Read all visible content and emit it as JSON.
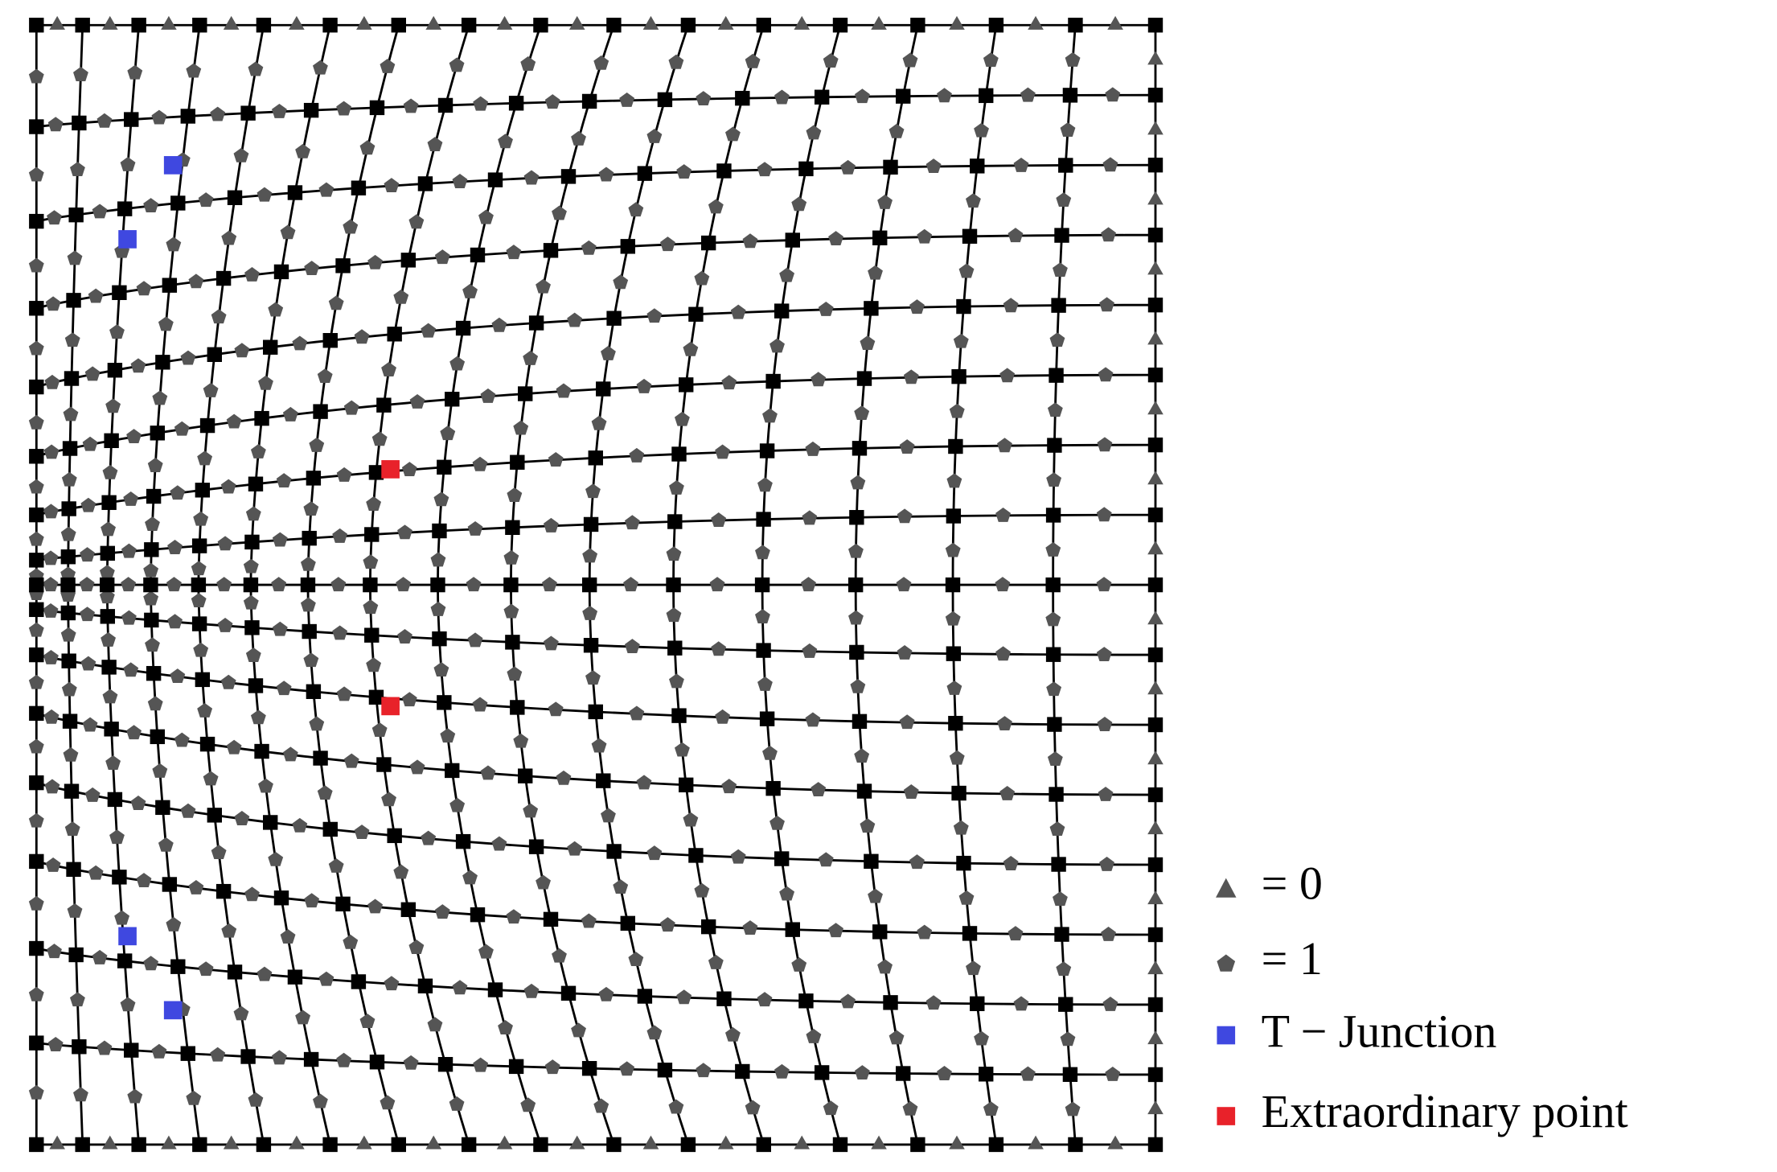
{
  "legend": {
    "items": [
      "= 0",
      "= 1",
      "T − Junction",
      "Extraordinary point"
    ]
  }
}
